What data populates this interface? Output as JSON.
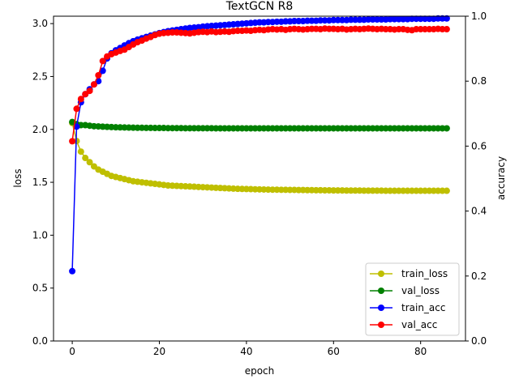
{
  "chart_data": {
    "type": "line",
    "title": "TextGCN R8",
    "xlabel": "epoch",
    "ylabel_left": "loss",
    "ylabel_right": "accuracy",
    "xlim": [
      -4.3,
      90.3
    ],
    "ylim_left": [
      0.0,
      3.07
    ],
    "ylim_right": [
      0.0,
      1.0
    ],
    "xticks": [
      0,
      20,
      40,
      60,
      80
    ],
    "yticks_left": [
      0.0,
      0.5,
      1.0,
      1.5,
      2.0,
      2.5,
      3.0
    ],
    "yticks_right": [
      0.0,
      0.2,
      0.4,
      0.6,
      0.8,
      1.0
    ],
    "legend_position": "lower-right",
    "series": [
      {
        "name": "train_loss",
        "axis": "left",
        "color": "#bfbf00",
        "values": [
          2.06,
          1.89,
          1.79,
          1.73,
          1.69,
          1.65,
          1.62,
          1.6,
          1.58,
          1.56,
          1.55,
          1.54,
          1.53,
          1.52,
          1.51,
          1.505,
          1.5,
          1.495,
          1.49,
          1.485,
          1.48,
          1.475,
          1.47,
          1.468,
          1.466,
          1.464,
          1.462,
          1.46,
          1.458,
          1.456,
          1.454,
          1.452,
          1.45,
          1.448,
          1.446,
          1.444,
          1.442,
          1.44,
          1.438,
          1.437,
          1.436,
          1.435,
          1.434,
          1.433,
          1.432,
          1.431,
          1.43,
          1.43,
          1.429,
          1.429,
          1.428,
          1.428,
          1.427,
          1.427,
          1.426,
          1.426,
          1.425,
          1.425,
          1.424,
          1.424,
          1.423,
          1.423,
          1.423,
          1.422,
          1.422,
          1.422,
          1.422,
          1.421,
          1.421,
          1.421,
          1.421,
          1.421,
          1.42,
          1.42,
          1.42,
          1.42,
          1.42,
          1.42,
          1.42,
          1.42,
          1.42,
          1.42,
          1.42,
          1.42,
          1.42,
          1.42,
          1.42
        ]
      },
      {
        "name": "val_loss",
        "axis": "left",
        "color": "#008000",
        "values": [
          2.07,
          2.05,
          2.04,
          2.04,
          2.035,
          2.03,
          2.028,
          2.026,
          2.024,
          2.022,
          2.02,
          2.019,
          2.018,
          2.017,
          2.016,
          2.015,
          2.015,
          2.014,
          2.014,
          2.013,
          2.013,
          2.013,
          2.012,
          2.012,
          2.012,
          2.012,
          2.011,
          2.011,
          2.011,
          2.011,
          2.011,
          2.011,
          2.011,
          2.01,
          2.01,
          2.01,
          2.01,
          2.01,
          2.01,
          2.01,
          2.01,
          2.01,
          2.01,
          2.01,
          2.01,
          2.01,
          2.01,
          2.01,
          2.01,
          2.01,
          2.01,
          2.01,
          2.01,
          2.01,
          2.01,
          2.01,
          2.01,
          2.01,
          2.01,
          2.01,
          2.01,
          2.01,
          2.01,
          2.01,
          2.01,
          2.01,
          2.01,
          2.01,
          2.01,
          2.01,
          2.01,
          2.01,
          2.01,
          2.01,
          2.01,
          2.01,
          2.01,
          2.01,
          2.01,
          2.01,
          2.01,
          2.01,
          2.01,
          2.01,
          2.01,
          2.01,
          2.01
        ]
      },
      {
        "name": "train_acc",
        "axis": "right",
        "color": "#0000ff",
        "values": [
          0.215,
          0.66,
          0.735,
          0.76,
          0.775,
          0.79,
          0.8,
          0.832,
          0.87,
          0.886,
          0.895,
          0.902,
          0.91,
          0.917,
          0.923,
          0.928,
          0.932,
          0.936,
          0.94,
          0.944,
          0.948,
          0.951,
          0.954,
          0.956,
          0.958,
          0.96,
          0.962,
          0.964,
          0.965,
          0.966,
          0.968,
          0.969,
          0.97,
          0.971,
          0.972,
          0.973,
          0.974,
          0.975,
          0.976,
          0.977,
          0.978,
          0.979,
          0.98,
          0.981,
          0.981,
          0.982,
          0.982,
          0.983,
          0.983,
          0.984,
          0.984,
          0.985,
          0.985,
          0.985,
          0.986,
          0.986,
          0.986,
          0.987,
          0.987,
          0.987,
          0.988,
          0.988,
          0.988,
          0.988,
          0.989,
          0.989,
          0.989,
          0.989,
          0.99,
          0.99,
          0.99,
          0.99,
          0.99,
          0.991,
          0.991,
          0.991,
          0.991,
          0.991,
          0.992,
          0.992,
          0.992,
          0.992,
          0.992,
          0.992,
          0.993,
          0.993,
          0.993
        ]
      },
      {
        "name": "val_acc",
        "axis": "right",
        "color": "#ff0000",
        "values": [
          0.615,
          0.715,
          0.745,
          0.76,
          0.77,
          0.79,
          0.818,
          0.862,
          0.876,
          0.883,
          0.888,
          0.893,
          0.897,
          0.905,
          0.913,
          0.92,
          0.925,
          0.931,
          0.936,
          0.942,
          0.946,
          0.948,
          0.949,
          0.95,
          0.95,
          0.949,
          0.948,
          0.947,
          0.949,
          0.951,
          0.952,
          0.951,
          0.953,
          0.951,
          0.952,
          0.953,
          0.952,
          0.954,
          0.955,
          0.955,
          0.956,
          0.955,
          0.957,
          0.958,
          0.957,
          0.959,
          0.96,
          0.959,
          0.96,
          0.958,
          0.96,
          0.961,
          0.96,
          0.959,
          0.96,
          0.961,
          0.961,
          0.96,
          0.962,
          0.961,
          0.961,
          0.96,
          0.961,
          0.959,
          0.96,
          0.961,
          0.96,
          0.961,
          0.962,
          0.961,
          0.96,
          0.961,
          0.96,
          0.96,
          0.959,
          0.96,
          0.96,
          0.958,
          0.957,
          0.96,
          0.96,
          0.96,
          0.96,
          0.96,
          0.961,
          0.96,
          0.96
        ]
      }
    ]
  }
}
